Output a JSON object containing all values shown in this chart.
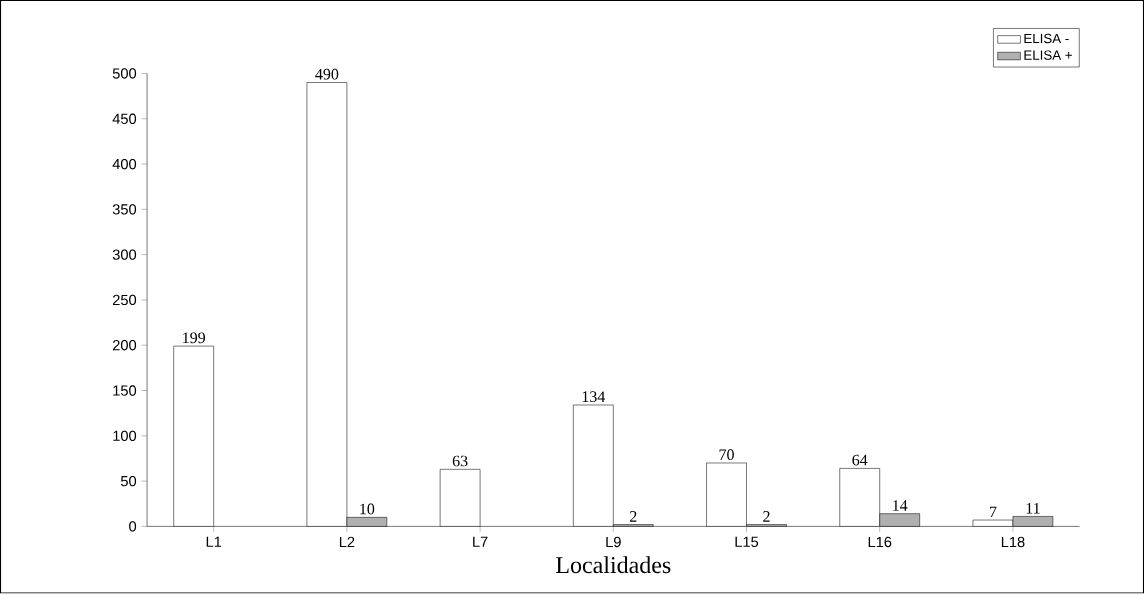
{
  "chart_data": {
    "type": "bar",
    "xlabel": "Localidades",
    "categories": [
      "L1",
      "L2",
      "L7",
      "L9",
      "L15",
      "L16",
      "L18"
    ],
    "series": [
      {
        "name": "ELISA -",
        "color": "#ffffff",
        "values": [
          199,
          490,
          63,
          134,
          70,
          64,
          7
        ]
      },
      {
        "name": "ELISA +",
        "color": "#b0b0b0",
        "values": [
          null,
          10,
          null,
          2,
          2,
          14,
          11
        ]
      }
    ],
    "ylim": [
      0,
      500
    ],
    "yticks": [
      0,
      50,
      100,
      150,
      200,
      250,
      300,
      350,
      400,
      450,
      500
    ],
    "data_labels": true,
    "legend": "top right",
    "grid": false
  }
}
